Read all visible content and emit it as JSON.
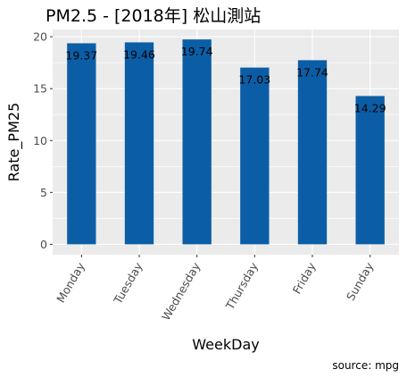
{
  "chart_data": {
    "type": "bar",
    "title": "PM2.5 - [2018年]   松山測站",
    "xlabel": "WeekDay",
    "ylabel": "Rate_PM25",
    "caption": "source: mpg",
    "categories": [
      "Monday",
      "Tuesday",
      "Wednesday",
      "Thursday",
      "Friday",
      "Sunday"
    ],
    "values": [
      19.37,
      19.46,
      19.74,
      17.03,
      17.74,
      14.29
    ],
    "data_labels": [
      "19.37",
      "19.46",
      "19.74",
      "17.03",
      "17.74",
      "14.29"
    ],
    "y_ticks": [
      0,
      5,
      10,
      15,
      20
    ],
    "ylim": [
      -1,
      20.7
    ],
    "grid": true,
    "legend": "none",
    "colors": {
      "bar": "#0b5ea6",
      "panel": "#ebebeb",
      "grid": "#ffffff",
      "tick_text": "#4d4d4d",
      "tick_mark": "#333333"
    }
  }
}
